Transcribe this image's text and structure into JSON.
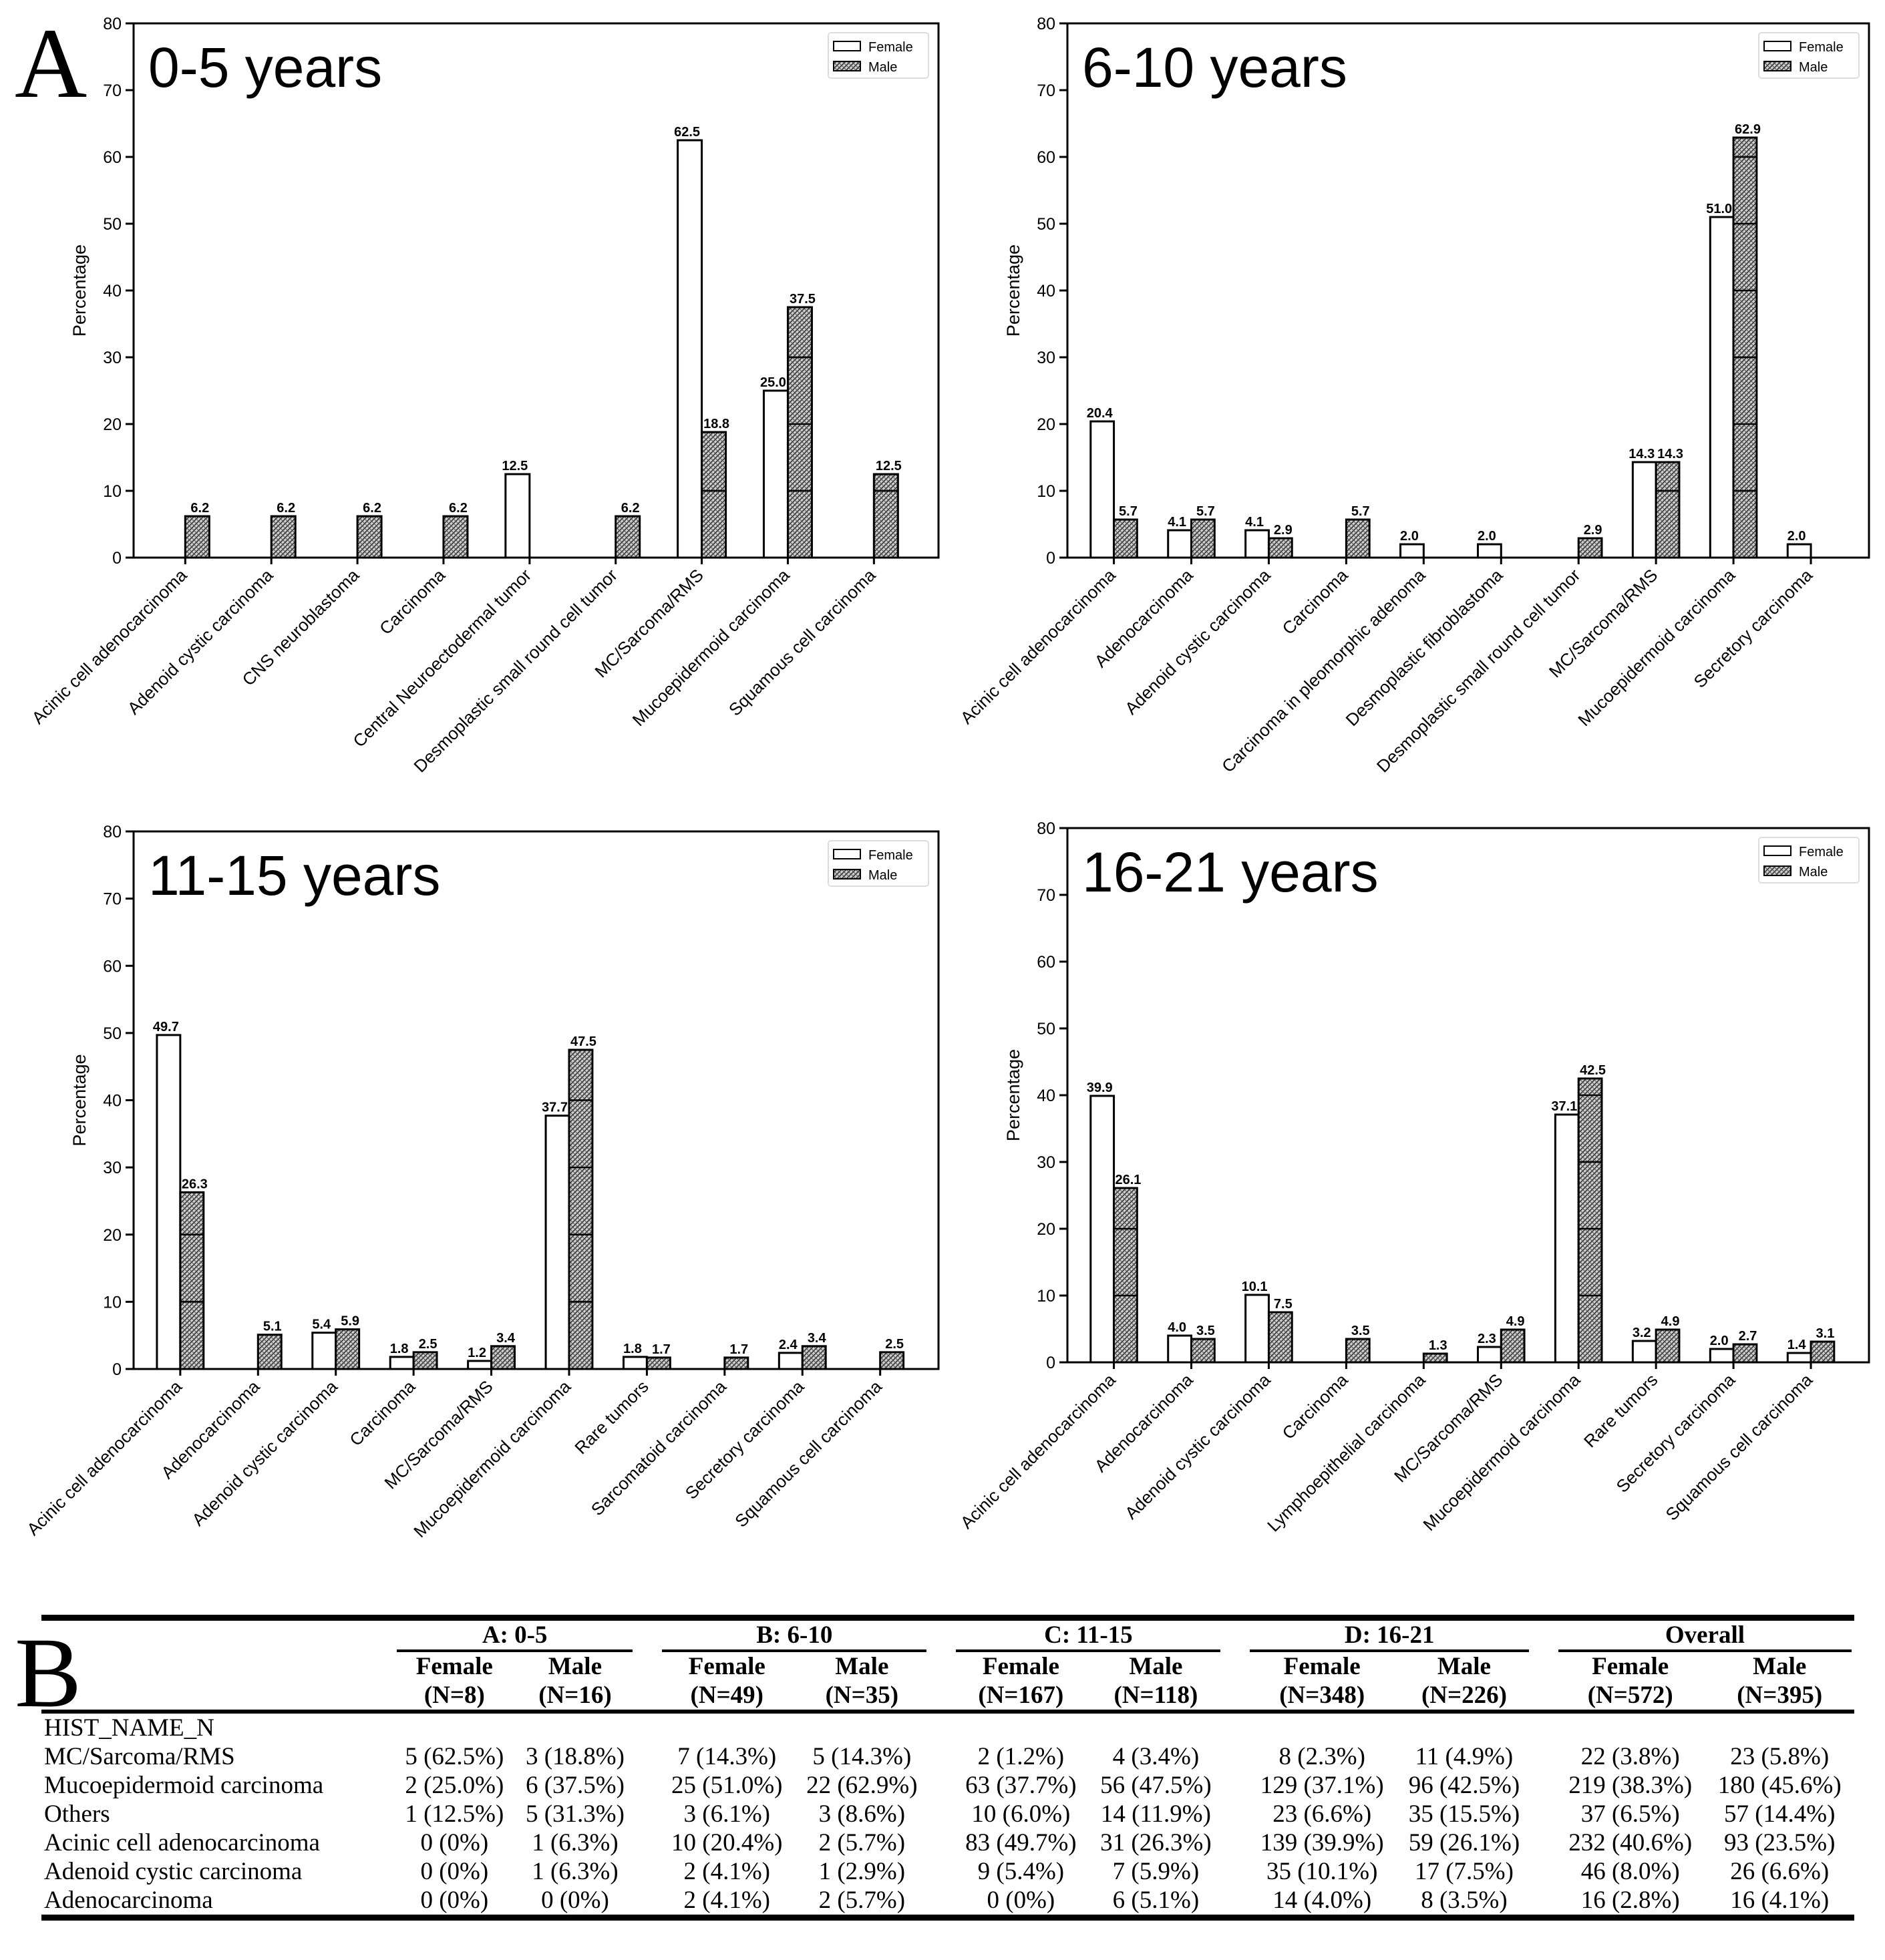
{
  "figure": {
    "panel_labels": {
      "a": "A",
      "b": "B"
    }
  },
  "legend": {
    "female": "Female",
    "male": "Male"
  },
  "chart_data": [
    {
      "type": "bar",
      "title": "0-5 years",
      "ylabel": "Percentage",
      "ylim": [
        0,
        80
      ],
      "yticks": [
        0,
        10,
        20,
        30,
        40,
        50,
        60,
        70,
        80
      ],
      "legend_position": "top-right",
      "categories": [
        "Acinic cell adenocarcinoma",
        "Adenoid cystic carcinoma",
        "CNS neuroblastoma",
        "Carcinoma",
        "Central Neuroectodermal tumor",
        "Desmoplastic small round cell tumor",
        "MC/Sarcoma/RMS",
        "Mucoepidermoid carcinoma",
        "Squamous cell carcinoma"
      ],
      "series": [
        {
          "name": "Female",
          "values": [
            null,
            null,
            null,
            null,
            12.5,
            null,
            62.5,
            25.0,
            null
          ],
          "labels": [
            null,
            null,
            null,
            null,
            "12.5",
            null,
            "62.5",
            "25.0",
            null
          ]
        },
        {
          "name": "Male",
          "values": [
            6.2,
            6.2,
            6.2,
            6.2,
            null,
            6.2,
            18.8,
            37.5,
            12.5
          ],
          "labels": [
            "6.2",
            "6.2",
            "6.2",
            "6.2",
            null,
            "6.2",
            "18.8",
            "37.5",
            "12.5"
          ]
        }
      ]
    },
    {
      "type": "bar",
      "title": "6-10 years",
      "ylabel": "Percentage",
      "ylim": [
        0,
        80
      ],
      "yticks": [
        0,
        10,
        20,
        30,
        40,
        50,
        60,
        70,
        80
      ],
      "legend_position": "top-right",
      "categories": [
        "Acinic cell adenocarcinoma",
        "Adenocarcinoma",
        "Adenoid cystic carcinoma",
        "Carcinoma",
        "Carcinoma in pleomorphic adenoma",
        "Desmoplastic fibroblastoma",
        "Desmoplastic small round cell tumor",
        "MC/Sarcoma/RMS",
        "Mucoepidermoid carcinoma",
        "Secretory carcinoma"
      ],
      "series": [
        {
          "name": "Female",
          "values": [
            20.4,
            4.1,
            4.1,
            null,
            2.0,
            2.0,
            null,
            14.3,
            51.0,
            2.0
          ],
          "labels": [
            "20.4",
            "4.1",
            "4.1",
            null,
            "2.0",
            "2.0",
            null,
            "14.3",
            "51.0",
            "2.0"
          ]
        },
        {
          "name": "Male",
          "values": [
            5.7,
            5.7,
            2.9,
            5.7,
            null,
            null,
            2.9,
            14.3,
            62.9,
            null
          ],
          "labels": [
            "5.7",
            "5.7",
            "2.9",
            "5.7",
            null,
            null,
            "2.9",
            "14.3",
            "62.9",
            null
          ]
        }
      ]
    },
    {
      "type": "bar",
      "title": "11-15 years",
      "ylabel": "Percentage",
      "ylim": [
        0,
        80
      ],
      "yticks": [
        0,
        10,
        20,
        30,
        40,
        50,
        60,
        70,
        80
      ],
      "legend_position": "top-right",
      "categories": [
        "Acinic cell adenocarcinoma",
        "Adenocarcinoma",
        "Adenoid cystic carcinoma",
        "Carcinoma",
        "MC/Sarcoma/RMS",
        "Mucoepidermoid carcinoma",
        "Rare tumors",
        "Sarcomatoid carcinoma",
        "Secretory carcinoma",
        "Squamous cell carcinoma"
      ],
      "series": [
        {
          "name": "Female",
          "values": [
            49.7,
            null,
            5.4,
            1.8,
            1.2,
            37.7,
            1.8,
            null,
            2.4,
            null
          ],
          "labels": [
            "49.7",
            null,
            "5.4",
            "1.8",
            "1.2",
            "37.7",
            "1.8",
            null,
            "2.4",
            null
          ]
        },
        {
          "name": "Male",
          "values": [
            26.3,
            5.1,
            5.9,
            2.5,
            3.4,
            47.5,
            1.7,
            1.7,
            3.4,
            2.5
          ],
          "labels": [
            "26.3",
            "5.1",
            "5.9",
            "2.5",
            "3.4",
            "47.5",
            "1.7",
            "1.7",
            "3.4",
            "2.5"
          ]
        }
      ]
    },
    {
      "type": "bar",
      "title": "16-21 years",
      "ylabel": "Percentage",
      "ylim": [
        0,
        80
      ],
      "yticks": [
        0,
        10,
        20,
        30,
        40,
        50,
        60,
        70,
        80
      ],
      "legend_position": "top-right",
      "categories": [
        "Acinic cell adenocarcinoma",
        "Adenocarcinoma",
        "Adenoid cystic carcinoma",
        "Carcinoma",
        "Lymphoepithelial carcinoma",
        "MC/Sarcoma/RMS",
        "Mucoepidermoid carcinoma",
        "Rare tumors",
        "Secretory carcinoma",
        "Squamous cell carcinoma"
      ],
      "series": [
        {
          "name": "Female",
          "values": [
            39.9,
            4.0,
            10.1,
            null,
            null,
            2.3,
            37.1,
            3.2,
            2.0,
            1.4
          ],
          "labels": [
            "39.9",
            "4.0",
            "10.1",
            null,
            null,
            "2.3",
            "37.1",
            "3.2",
            "2.0",
            "1.4"
          ]
        },
        {
          "name": "Male",
          "values": [
            26.1,
            3.5,
            7.5,
            3.5,
            1.3,
            4.9,
            42.5,
            4.9,
            2.7,
            3.1
          ],
          "labels": [
            "26.1",
            "3.5",
            "7.5",
            "3.5",
            "1.3",
            "4.9",
            "42.5",
            "4.9",
            "2.7",
            "3.1"
          ]
        }
      ]
    },
    {
      "type": "table",
      "groups": [
        "A: 0-5",
        "B: 6-10",
        "C: 11-15",
        "D: 16-21",
        "Overall"
      ],
      "subheaders": [
        {
          "sex": "Female",
          "n": "(N=8)"
        },
        {
          "sex": "Male",
          "n": "(N=16)"
        },
        {
          "sex": "Female",
          "n": "(N=49)"
        },
        {
          "sex": "Male",
          "n": "(N=35)"
        },
        {
          "sex": "Female",
          "n": "(N=167)"
        },
        {
          "sex": "Male",
          "n": "(N=118)"
        },
        {
          "sex": "Female",
          "n": "(N=348)"
        },
        {
          "sex": "Male",
          "n": "(N=226)"
        },
        {
          "sex": "Female",
          "n": "(N=572)"
        },
        {
          "sex": "Male",
          "n": "(N=395)"
        }
      ],
      "section_label": "HIST_NAME_N",
      "rows": [
        {
          "label": "MC/Sarcoma/RMS",
          "cells": [
            "5 (62.5%)",
            "3 (18.8%)",
            "7 (14.3%)",
            "5 (14.3%)",
            "2 (1.2%)",
            "4 (3.4%)",
            "8 (2.3%)",
            "11 (4.9%)",
            "22 (3.8%)",
            "23 (5.8%)"
          ]
        },
        {
          "label": "Mucoepidermoid carcinoma",
          "cells": [
            "2 (25.0%)",
            "6 (37.5%)",
            "25 (51.0%)",
            "22 (62.9%)",
            "63 (37.7%)",
            "56 (47.5%)",
            "129 (37.1%)",
            "96 (42.5%)",
            "219 (38.3%)",
            "180 (45.6%)"
          ]
        },
        {
          "label": "Others",
          "cells": [
            "1 (12.5%)",
            "5 (31.3%)",
            "3 (6.1%)",
            "3 (8.6%)",
            "10 (6.0%)",
            "14 (11.9%)",
            "23 (6.6%)",
            "35 (15.5%)",
            "37 (6.5%)",
            "57 (14.4%)"
          ]
        },
        {
          "label": "Acinic cell adenocarcinoma",
          "cells": [
            "0 (0%)",
            "1 (6.3%)",
            "10 (20.4%)",
            "2 (5.7%)",
            "83 (49.7%)",
            "31 (26.3%)",
            "139 (39.9%)",
            "59 (26.1%)",
            "232 (40.6%)",
            "93 (23.5%)"
          ]
        },
        {
          "label": "Adenoid cystic carcinoma",
          "cells": [
            "0 (0%)",
            "1 (6.3%)",
            "2 (4.1%)",
            "1 (2.9%)",
            "9 (5.4%)",
            "7 (5.9%)",
            "35 (10.1%)",
            "17 (7.5%)",
            "46 (8.0%)",
            "26 (6.6%)"
          ]
        },
        {
          "label": "Adenocarcinoma",
          "cells": [
            "0 (0%)",
            "0 (0%)",
            "2 (4.1%)",
            "2 (5.7%)",
            "0 (0%)",
            "6 (5.1%)",
            "14 (4.0%)",
            "8 (3.5%)",
            "16 (2.8%)",
            "16 (4.1%)"
          ]
        }
      ]
    }
  ]
}
